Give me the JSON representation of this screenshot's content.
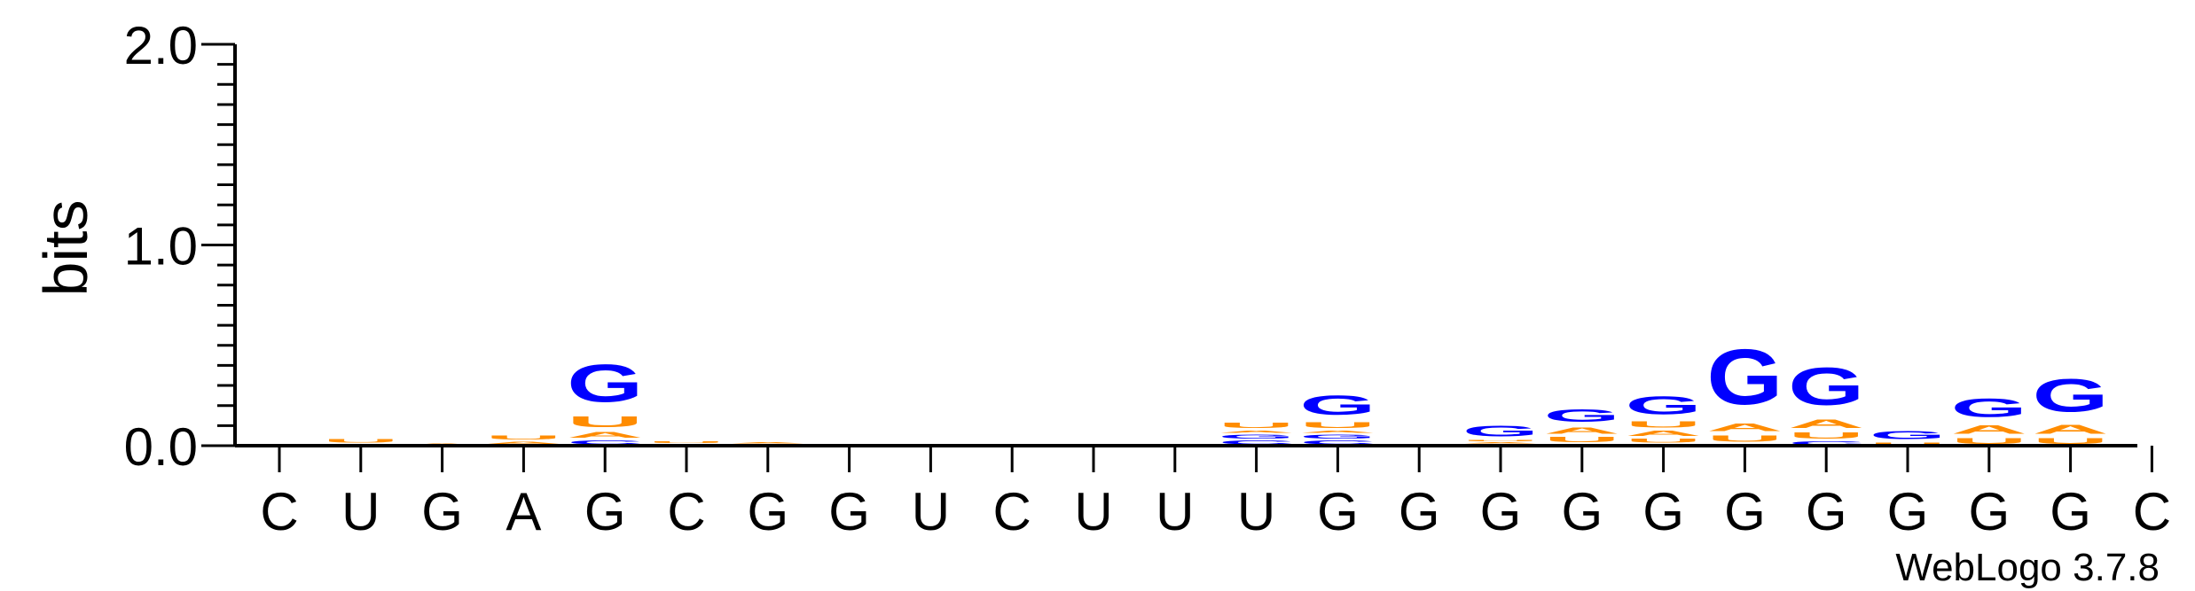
{
  "chart_data": {
    "type": "sequence-logo",
    "ylabel": "bits",
    "ylim": [
      0,
      2.0
    ],
    "yticks": [
      "0.0",
      "1.0",
      "2.0"
    ],
    "positions": [
      "C",
      "U",
      "G",
      "A",
      "G",
      "C",
      "G",
      "G",
      "U",
      "C",
      "U",
      "U",
      "U",
      "G",
      "G",
      "G",
      "G",
      "G",
      "G",
      "G",
      "G",
      "G",
      "G",
      "C"
    ],
    "columns": [
      {
        "letters": []
      },
      {
        "letters": [
          {
            "base": "C",
            "bits": 0.005
          },
          {
            "base": "A",
            "bits": 0.005
          },
          {
            "base": "U",
            "bits": 0.025
          }
        ]
      },
      {
        "letters": [
          {
            "base": "A",
            "bits": 0.015
          }
        ]
      },
      {
        "letters": [
          {
            "base": "G",
            "bits": 0.005
          },
          {
            "base": "A",
            "bits": 0.02
          },
          {
            "base": "U",
            "bits": 0.03
          }
        ]
      },
      {
        "letters": [
          {
            "base": "C",
            "bits": 0.03
          },
          {
            "base": "A",
            "bits": 0.045
          },
          {
            "base": "U",
            "bits": 0.085
          },
          {
            "base": "G",
            "bits": 0.3
          }
        ]
      },
      {
        "letters": [
          {
            "base": "A",
            "bits": 0.01
          },
          {
            "base": "U",
            "bits": 0.015
          }
        ]
      },
      {
        "letters": [
          {
            "base": "C",
            "bits": 0.01
          },
          {
            "base": "A",
            "bits": 0.01
          }
        ]
      },
      {
        "letters": [
          {
            "base": "A",
            "bits": 0.008
          }
        ]
      },
      {
        "letters": []
      },
      {
        "letters": []
      },
      {
        "letters": []
      },
      {
        "letters": []
      },
      {
        "letters": [
          {
            "base": "C",
            "bits": 0.03
          },
          {
            "base": "G",
            "bits": 0.03
          },
          {
            "base": "A",
            "bits": 0.02
          },
          {
            "base": "U",
            "bits": 0.04
          }
        ]
      },
      {
        "letters": [
          {
            "base": "C",
            "bits": 0.03
          },
          {
            "base": "G",
            "bits": 0.03
          },
          {
            "base": "A",
            "bits": 0.02
          },
          {
            "base": "U",
            "bits": 0.045
          },
          {
            "base": "G",
            "bits": 0.155
          }
        ]
      },
      {
        "letters": []
      },
      {
        "letters": [
          {
            "base": "C",
            "bits": 0.01
          },
          {
            "base": "A",
            "bits": 0.01
          },
          {
            "base": "U",
            "bits": 0.01
          },
          {
            "base": "G",
            "bits": 0.085
          }
        ]
      },
      {
        "letters": [
          {
            "base": "C",
            "bits": 0.01
          },
          {
            "base": "U",
            "bits": 0.04
          },
          {
            "base": "A",
            "bits": 0.05
          },
          {
            "base": "G",
            "bits": 0.1
          }
        ]
      },
      {
        "letters": [
          {
            "base": "C",
            "bits": 0.01
          },
          {
            "base": "U",
            "bits": 0.03
          },
          {
            "base": "A",
            "bits": 0.04
          },
          {
            "base": "U",
            "bits": 0.05
          },
          {
            "base": "G",
            "bits": 0.14
          }
        ]
      },
      {
        "letters": [
          {
            "base": "C",
            "bits": 0.01
          },
          {
            "base": "U",
            "bits": 0.05
          },
          {
            "base": "A",
            "bits": 0.06
          },
          {
            "base": "G",
            "bits": 0.44
          }
        ]
      },
      {
        "letters": [
          {
            "base": "C",
            "bits": 0.025
          },
          {
            "base": "U",
            "bits": 0.05
          },
          {
            "base": "A",
            "bits": 0.07
          },
          {
            "base": "G",
            "bits": 0.3
          }
        ]
      },
      {
        "letters": [
          {
            "base": "U",
            "bits": 0.02
          },
          {
            "base": "G",
            "bits": 0.065
          }
        ]
      },
      {
        "letters": [
          {
            "base": "U",
            "bits": 0.045
          },
          {
            "base": "A",
            "bits": 0.07
          },
          {
            "base": "G",
            "bits": 0.145
          }
        ]
      },
      {
        "letters": [
          {
            "base": "U",
            "bits": 0.045
          },
          {
            "base": "A",
            "bits": 0.075
          },
          {
            "base": "G",
            "bits": 0.26
          }
        ]
      },
      {
        "letters": []
      }
    ],
    "colors": {
      "A": "#ff8c00",
      "U": "#ff8c00",
      "G": "#0000ff",
      "C": "#0000ff"
    },
    "credit": "WebLogo 3.7.8"
  }
}
